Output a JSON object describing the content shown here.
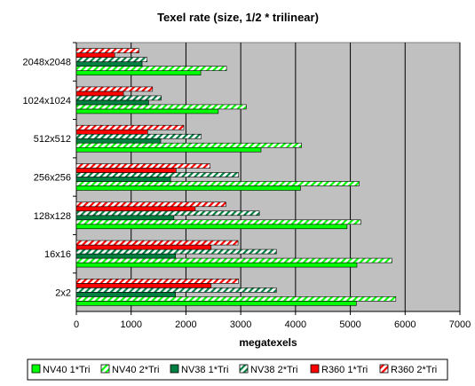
{
  "chart_data": {
    "type": "bar",
    "orientation": "horizontal",
    "title": "Texel rate (size, 1/2 * trilinear)",
    "xlabel": "megatexels",
    "ylabel": "",
    "xlim": [
      0,
      7000
    ],
    "xticks": [
      0,
      1000,
      2000,
      3000,
      4000,
      5000,
      6000,
      7000
    ],
    "grid": "vertical",
    "legend_position": "bottom",
    "plot_background": "#c0c0c0",
    "categories": [
      "2048x2048",
      "1024x1024",
      "512x512",
      "256x256",
      "128x128",
      "16x16",
      "2x2"
    ],
    "series": [
      {
        "name": "NV40 1*Tri",
        "color": "#00ff00",
        "pattern": "solid",
        "values": [
          2270,
          2590,
          3370,
          4090,
          4940,
          5120,
          5110
        ]
      },
      {
        "name": "NV40 2*Tri",
        "color": "#00ff00",
        "pattern": "hatch",
        "values": [
          2740,
          3100,
          4110,
          5160,
          5190,
          5760,
          5830
        ]
      },
      {
        "name": "NV38 1*Tri",
        "color": "#008040",
        "pattern": "solid",
        "values": [
          1200,
          1320,
          1540,
          1720,
          1780,
          1810,
          1810
        ]
      },
      {
        "name": "NV38 2*Tri",
        "color": "#008040",
        "pattern": "hatch",
        "values": [
          1290,
          1550,
          2280,
          2960,
          3340,
          3650,
          3650
        ]
      },
      {
        "name": "R360 1*Tri",
        "color": "#ff0000",
        "pattern": "solid",
        "values": [
          700,
          860,
          1300,
          1820,
          2170,
          2460,
          2460
        ]
      },
      {
        "name": "R360 2*Tri",
        "color": "#ff0000",
        "pattern": "hatch",
        "values": [
          1140,
          1390,
          1960,
          2440,
          2730,
          2950,
          2960
        ]
      }
    ]
  }
}
